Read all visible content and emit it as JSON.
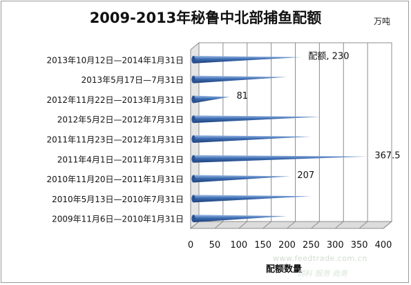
{
  "chart_data": {
    "type": "bar",
    "orientation": "horizontal",
    "title": "2009-2013年秘鲁中北部捕鱼配额",
    "unit": "万吨",
    "xlabel": "配额数量",
    "xlim": [
      0,
      400
    ],
    "xticks": [
      0,
      50,
      100,
      150,
      200,
      250,
      300,
      350,
      400
    ],
    "gridlines": true,
    "categories": [
      "2013年10月12日—2014年1月31日",
      "2013年5月17日—7月31日",
      "2012年11月22日—2013年1月31日",
      "2012年5月2日—2012年7月31日",
      "2011年11月23日—2012年1月31日",
      "2011年4月1日—2011年7月31日",
      "2010年11月20日—2011年1月31日",
      "2010年5月13日—2010年7月31日",
      "2009年11月6日—2010年1月31日"
    ],
    "series": [
      {
        "values": [
          230,
          200,
          81,
          270,
          250,
          367.5,
          207,
          250,
          200
        ]
      }
    ],
    "data_labels": [
      {
        "index": 0,
        "text": "配额, 230"
      },
      {
        "index": 2,
        "text": "81"
      },
      {
        "index": 5,
        "text": "367.5"
      },
      {
        "index": 6,
        "text": "207"
      }
    ],
    "bar_color": "#3a6ab0"
  },
  "watermark": {
    "text": "www.feedtrade.com.cn",
    "sub": "饲料  服务  商务"
  }
}
